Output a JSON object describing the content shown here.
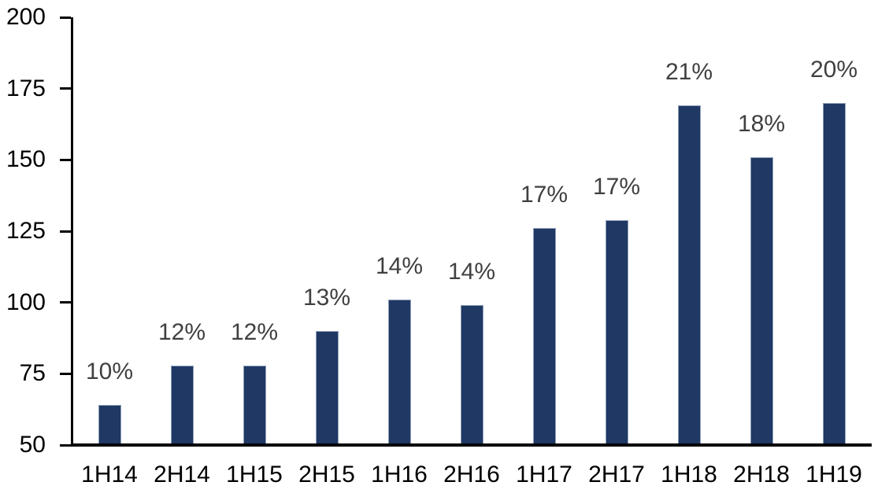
{
  "chart_data": {
    "type": "bar",
    "title": "",
    "xlabel": "",
    "ylabel": "",
    "categories": [
      "1H14",
      "2H14",
      "1H15",
      "2H15",
      "1H16",
      "2H16",
      "1H17",
      "2H17",
      "1H18",
      "2H18",
      "1H19"
    ],
    "values": [
      64,
      78,
      78,
      90,
      101,
      99,
      126,
      129,
      169,
      151,
      170
    ],
    "bar_labels": [
      "10%",
      "12%",
      "12%",
      "13%",
      "14%",
      "14%",
      "17%",
      "17%",
      "21%",
      "18%",
      "20%"
    ],
    "ylim": [
      50,
      200
    ],
    "yticks": [
      50,
      75,
      100,
      125,
      150,
      175,
      200
    ],
    "grid": false,
    "legend": "none",
    "colors": {
      "bar_fill": "#1F3864",
      "bar_border": "#8FA0B8",
      "data_label": "#404040",
      "axis_text": "#000000",
      "axis_line": "#000000",
      "background": "#FFFFFF"
    }
  }
}
